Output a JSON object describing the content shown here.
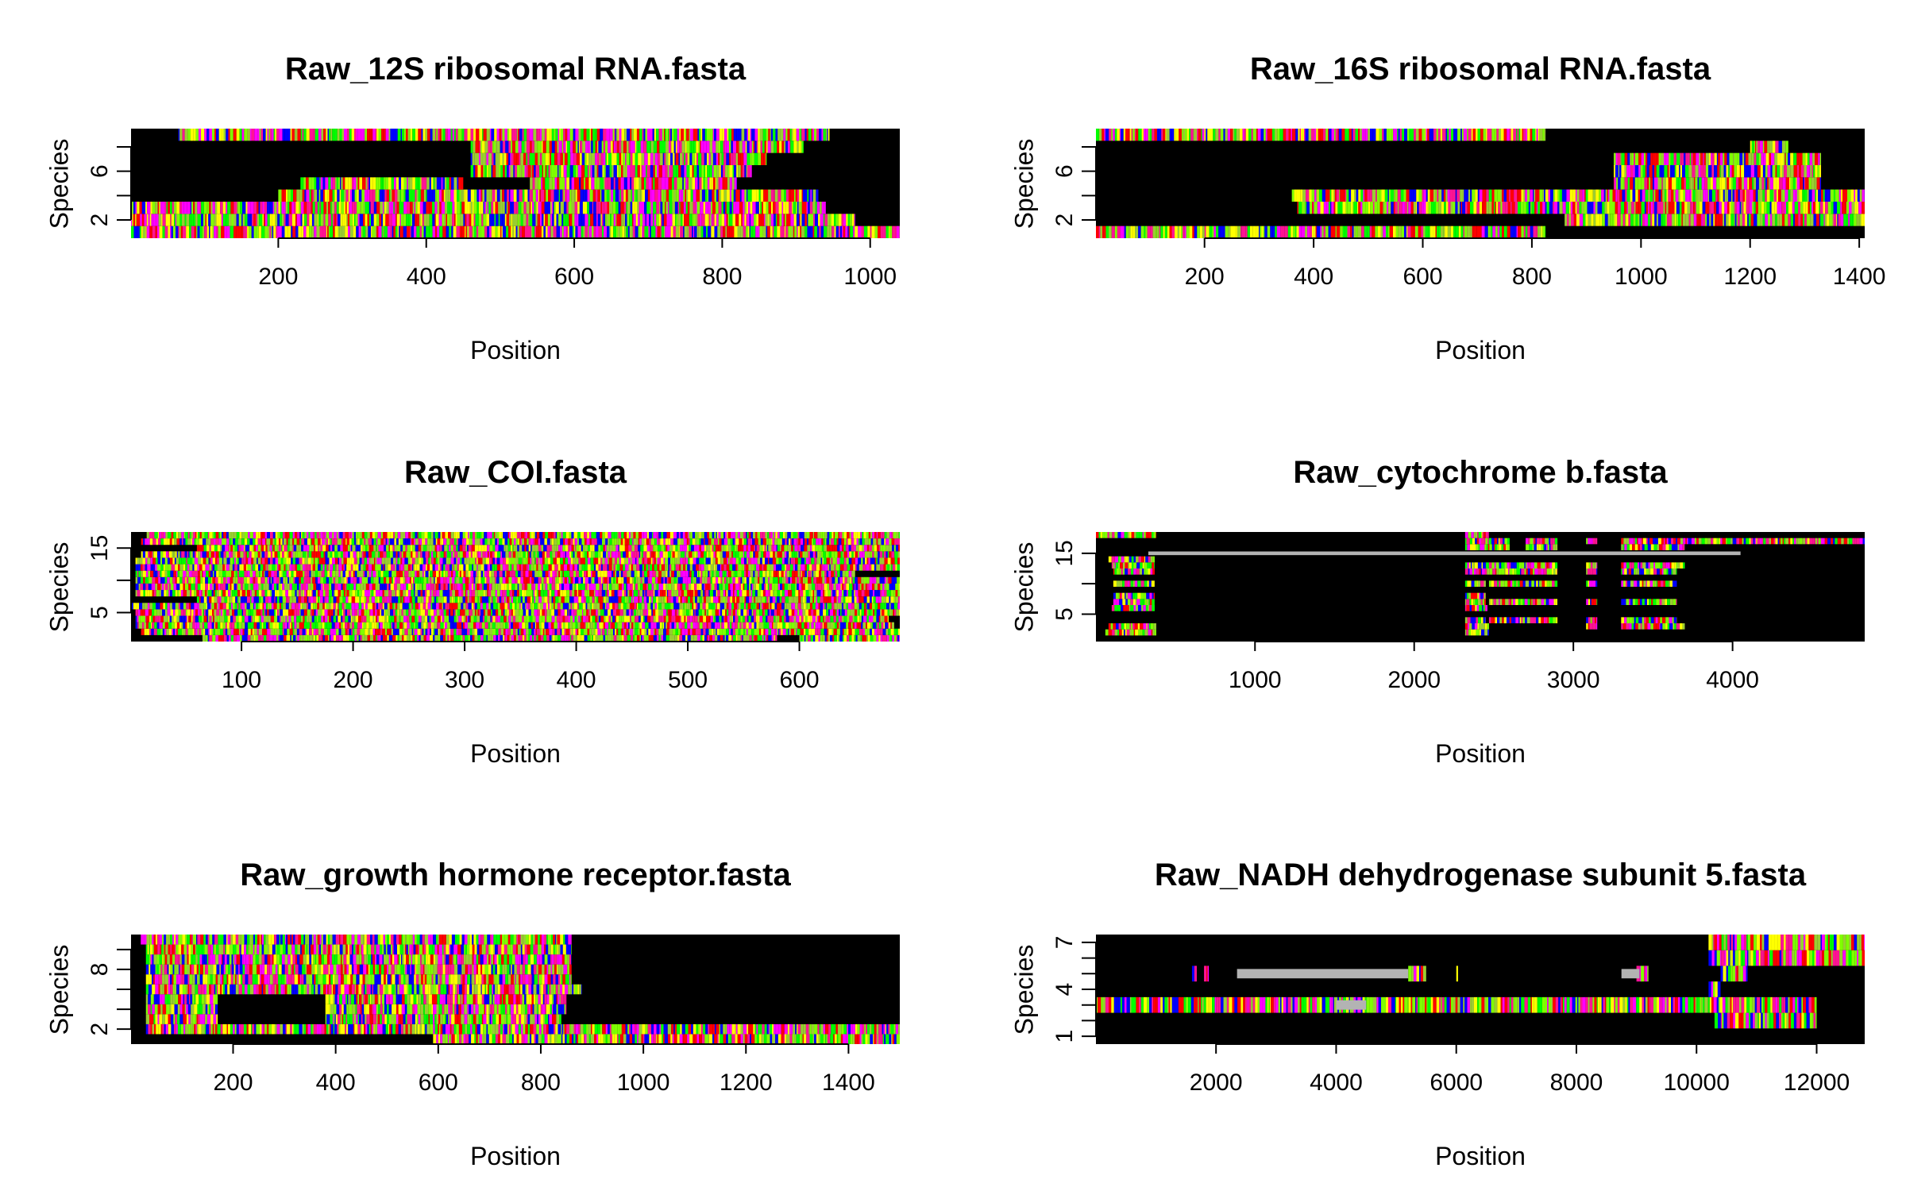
{
  "chart_data": [
    {
      "type": "heatmap",
      "title": "Raw_12S ribosomal RNA.fasta",
      "xlabel": "Position",
      "ylabel": "Species",
      "xlim": [
        1,
        1040
      ],
      "ylim": [
        0.5,
        9.5
      ],
      "x_ticks": [
        200,
        400,
        600,
        800,
        1000
      ],
      "y_ticks": [
        2,
        4,
        6,
        8
      ],
      "y_tick_labels": [
        "2",
        "6"
      ],
      "grid": false,
      "rows": [
        {
          "species": 1,
          "segments": [
            [
              1,
              1040
            ]
          ]
        },
        {
          "species": 2,
          "segments": [
            [
              1,
              980
            ]
          ]
        },
        {
          "species": 3,
          "segments": [
            [
              1,
              940
            ]
          ]
        },
        {
          "species": 4,
          "segments": [
            [
              200,
              930
            ]
          ]
        },
        {
          "species": 5,
          "segments": [
            [
              230,
              450
            ],
            [
              540,
              820
            ]
          ]
        },
        {
          "species": 6,
          "segments": [
            [
              460,
              840
            ]
          ]
        },
        {
          "species": 7,
          "segments": [
            [
              460,
              860
            ]
          ]
        },
        {
          "species": 8,
          "segments": [
            [
              460,
              910
            ]
          ]
        },
        {
          "species": 9,
          "segments": [
            [
              65,
              945
            ]
          ]
        }
      ],
      "gap_rows": []
    },
    {
      "type": "heatmap",
      "title": "Raw_16S ribosomal RNA.fasta",
      "xlabel": "Position",
      "ylabel": "Species",
      "xlim": [
        1,
        1410
      ],
      "ylim": [
        0.5,
        9.5
      ],
      "x_ticks": [
        200,
        400,
        600,
        800,
        1000,
        1200,
        1400
      ],
      "y_ticks": [
        2,
        4,
        6,
        8
      ],
      "y_tick_labels": [
        "2",
        "6"
      ],
      "grid": false,
      "rows": [
        {
          "species": 1,
          "segments": [
            [
              1,
              825
            ]
          ]
        },
        {
          "species": 2,
          "segments": [
            [
              860,
              1410
            ]
          ]
        },
        {
          "species": 3,
          "segments": [
            [
              370,
              1410
            ]
          ]
        },
        {
          "species": 4,
          "segments": [
            [
              360,
              1410
            ]
          ]
        },
        {
          "species": 5,
          "segments": [
            [
              950,
              1330
            ]
          ]
        },
        {
          "species": 6,
          "segments": [
            [
              950,
              1330
            ]
          ]
        },
        {
          "species": 7,
          "segments": [
            [
              950,
              1330
            ]
          ]
        },
        {
          "species": 8,
          "segments": [
            [
              1200,
              1270
            ]
          ]
        },
        {
          "species": 9,
          "segments": [
            [
              1,
              825
            ]
          ]
        }
      ],
      "gap_rows": []
    },
    {
      "type": "heatmap",
      "title": "Raw_COI.fasta",
      "xlabel": "Position",
      "ylabel": "Species",
      "xlim": [
        1,
        690
      ],
      "ylim": [
        0.5,
        17.5
      ],
      "x_ticks": [
        100,
        200,
        300,
        400,
        500,
        600
      ],
      "y_ticks": [
        5,
        10,
        15
      ],
      "y_tick_labels": [
        "5",
        "15"
      ],
      "grid": false,
      "rows": [
        {
          "species": 1,
          "segments": [
            [
              65,
              580
            ],
            [
              600,
              690
            ]
          ]
        },
        {
          "species": 2,
          "segments": [
            [
              10,
              690
            ]
          ]
        },
        {
          "species": 3,
          "segments": [
            [
              5,
              685
            ]
          ]
        },
        {
          "species": 4,
          "segments": [
            [
              5,
              680
            ]
          ]
        },
        {
          "species": 5,
          "segments": [
            [
              5,
              690
            ]
          ]
        },
        {
          "species": 6,
          "segments": [
            [
              1,
              690
            ]
          ]
        },
        {
          "species": 7,
          "segments": [
            [
              60,
              690
            ]
          ]
        },
        {
          "species": 8,
          "segments": [
            [
              5,
              690
            ]
          ]
        },
        {
          "species": 9,
          "segments": [
            [
              5,
              690
            ]
          ]
        },
        {
          "species": 10,
          "segments": [
            [
              5,
              690
            ]
          ]
        },
        {
          "species": 11,
          "segments": [
            [
              5,
              650
            ]
          ]
        },
        {
          "species": 12,
          "segments": [
            [
              5,
              690
            ]
          ]
        },
        {
          "species": 13,
          "segments": [
            [
              5,
              690
            ]
          ]
        },
        {
          "species": 14,
          "segments": [
            [
              10,
              690
            ]
          ]
        },
        {
          "species": 15,
          "segments": [
            [
              60,
              690
            ]
          ]
        },
        {
          "species": 16,
          "segments": [
            [
              10,
              690
            ]
          ]
        },
        {
          "species": 17,
          "segments": [
            [
              15,
              690
            ]
          ]
        }
      ],
      "gap_rows": []
    },
    {
      "type": "heatmap",
      "title": "Raw_cytochrome b.fasta",
      "xlabel": "Position",
      "ylabel": "Species",
      "xlim": [
        1,
        4830
      ],
      "ylim": [
        0.5,
        18.5
      ],
      "x_ticks": [
        1000,
        2000,
        3000,
        4000
      ],
      "y_ticks": [
        5,
        10,
        15
      ],
      "y_tick_labels": [
        "5",
        "15"
      ],
      "grid": false,
      "rows": [
        {
          "species": 2,
          "segments": [
            [
              60,
              380
            ],
            [
              2320,
              2470
            ]
          ]
        },
        {
          "species": 3,
          "segments": [
            [
              80,
              380
            ],
            [
              2320,
              2470
            ],
            [
              3080,
              3150
            ],
            [
              3300,
              3700
            ]
          ]
        },
        {
          "species": 4,
          "segments": [
            [
              2320,
              2450
            ],
            [
              2470,
              2900
            ],
            [
              3080,
              3150
            ],
            [
              3300,
              3650
            ]
          ]
        },
        {
          "species": 6,
          "segments": [
            [
              100,
              370
            ],
            [
              2320,
              2460
            ]
          ]
        },
        {
          "species": 7,
          "segments": [
            [
              110,
              370
            ],
            [
              2320,
              2450
            ],
            [
              2470,
              2900
            ],
            [
              3080,
              3150
            ],
            [
              3300,
              3650
            ]
          ]
        },
        {
          "species": 8,
          "segments": [
            [
              110,
              370
            ],
            [
              2320,
              2450
            ]
          ]
        },
        {
          "species": 10,
          "segments": [
            [
              110,
              370
            ],
            [
              2320,
              2450
            ],
            [
              2470,
              2900
            ],
            [
              3080,
              3150
            ],
            [
              3300,
              3650
            ]
          ]
        },
        {
          "species": 12,
          "segments": [
            [
              110,
              370
            ],
            [
              2320,
              2900
            ],
            [
              3080,
              3150
            ],
            [
              3300,
              3650
            ]
          ]
        },
        {
          "species": 13,
          "segments": [
            [
              100,
              370
            ],
            [
              2320,
              2900
            ],
            [
              3080,
              3150
            ],
            [
              3300,
              3700
            ]
          ]
        },
        {
          "species": 14,
          "segments": [
            [
              80,
              370
            ]
          ]
        },
        {
          "species": 16,
          "segments": [
            [
              2320,
              2600
            ],
            [
              2700,
              2900
            ],
            [
              3300,
              3700
            ]
          ]
        },
        {
          "species": 17,
          "segments": [
            [
              2320,
              2600
            ],
            [
              2700,
              2900
            ],
            [
              3080,
              3150
            ],
            [
              3300,
              4830
            ]
          ]
        },
        {
          "species": 18,
          "segments": [
            [
              1,
              380
            ],
            [
              2320,
              2470
            ]
          ]
        }
      ],
      "gap_rows": [
        {
          "species": 15,
          "range": [
            330,
            4050
          ]
        }
      ]
    },
    {
      "type": "heatmap",
      "title": "Raw_growth hormone receptor.fasta",
      "xlabel": "Position",
      "ylabel": "Species",
      "xlim": [
        1,
        1500
      ],
      "ylim": [
        0.5,
        11.5
      ],
      "x_ticks": [
        200,
        400,
        600,
        800,
        1000,
        1200,
        1400
      ],
      "y_ticks": [
        2,
        4,
        6,
        8,
        10
      ],
      "y_tick_labels": [
        "2",
        "8"
      ],
      "grid": false,
      "rows": [
        {
          "species": 1,
          "segments": [
            [
              590,
              1500
            ]
          ]
        },
        {
          "species": 2,
          "segments": [
            [
              30,
              1500
            ]
          ]
        },
        {
          "species": 3,
          "segments": [
            [
              30,
              170
            ],
            [
              380,
              840
            ]
          ]
        },
        {
          "species": 4,
          "segments": [
            [
              30,
              170
            ],
            [
              380,
              850
            ]
          ]
        },
        {
          "species": 5,
          "segments": [
            [
              30,
              170
            ],
            [
              380,
              850
            ]
          ]
        },
        {
          "species": 6,
          "segments": [
            [
              30,
              880
            ]
          ]
        },
        {
          "species": 7,
          "segments": [
            [
              30,
              860
            ]
          ]
        },
        {
          "species": 8,
          "segments": [
            [
              30,
              860
            ]
          ]
        },
        {
          "species": 9,
          "segments": [
            [
              30,
              860
            ]
          ]
        },
        {
          "species": 10,
          "segments": [
            [
              30,
              860
            ]
          ]
        },
        {
          "species": 11,
          "segments": [
            [
              20,
              860
            ]
          ]
        }
      ],
      "gap_rows": []
    },
    {
      "type": "heatmap",
      "title": "Raw_NADH dehydrogenase subunit 5.fasta",
      "xlabel": "Position",
      "ylabel": "Species",
      "xlim": [
        1,
        12800
      ],
      "ylim": [
        0.5,
        7.5
      ],
      "x_ticks": [
        2000,
        4000,
        6000,
        8000,
        10000,
        12000
      ],
      "y_ticks": [
        1,
        2,
        3,
        4,
        5,
        6,
        7
      ],
      "y_tick_labels": [
        "1",
        "4",
        "7"
      ],
      "grid": false,
      "rows": [
        {
          "species": 2,
          "segments": [
            [
              10300,
              12000
            ]
          ]
        },
        {
          "species": 3,
          "segments": [
            [
              1,
              12000
            ]
          ]
        },
        {
          "species": 4,
          "segments": [
            [
              10200,
              10400
            ]
          ]
        },
        {
          "species": 5,
          "segments": [
            [
              1600,
              1680
            ],
            [
              1800,
              1880
            ],
            [
              5200,
              5500
            ],
            [
              6000,
              6030
            ],
            [
              9000,
              9200
            ],
            [
              10400,
              10850
            ]
          ]
        },
        {
          "species": 6,
          "segments": [
            [
              10200,
              12800
            ]
          ]
        },
        {
          "species": 7,
          "segments": [
            [
              10200,
              12800
            ]
          ]
        }
      ],
      "gap_rows": [
        {
          "species": 3,
          "range": [
            4000,
            4500
          ]
        },
        {
          "species": 5,
          "range": [
            2350,
            5200
          ]
        },
        {
          "species": 5,
          "range": [
            8750,
            9050
          ]
        }
      ]
    }
  ],
  "palette": {
    "background": "#000000",
    "gap": "#b3b3b3",
    "bases": [
      "#ff0000",
      "#00ff00",
      "#0000ff",
      "#ffff00",
      "#7fff00",
      "#ff00ff",
      "#9acd32",
      "#ff1493"
    ]
  }
}
